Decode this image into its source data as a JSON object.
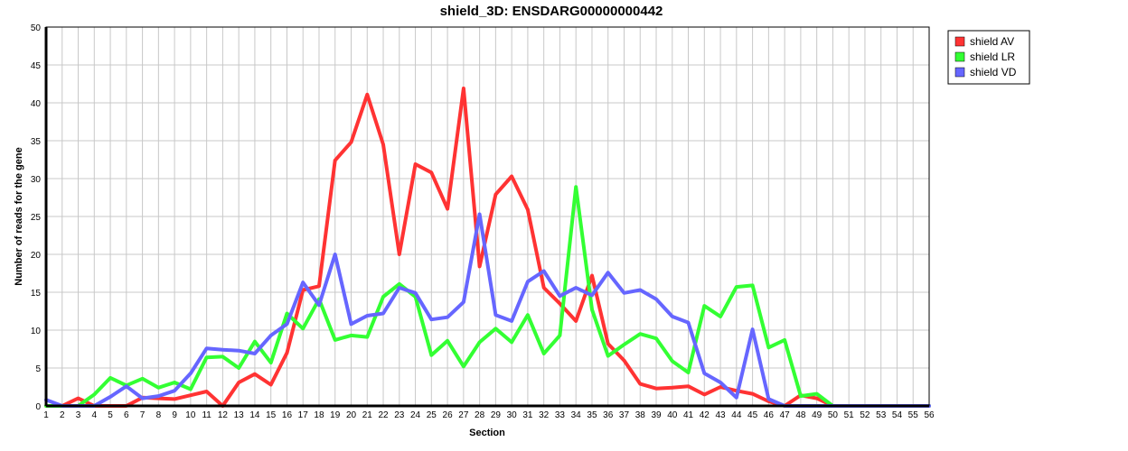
{
  "chart_data": {
    "type": "line",
    "title": "shield_3D: ENSDARG00000000442",
    "xlabel": "Section",
    "ylabel": "Number of reads for the gene",
    "xlim": [
      1,
      56
    ],
    "ylim": [
      0,
      50
    ],
    "ytick_step": 5,
    "grid": true,
    "legend_position": "top-right-outside",
    "categories": [
      "1",
      "2",
      "3",
      "4",
      "5",
      "6",
      "7",
      "8",
      "9",
      "10",
      "11",
      "12",
      "13",
      "14",
      "15",
      "16",
      "17",
      "18",
      "19",
      "20",
      "21",
      "22",
      "23",
      "24",
      "25",
      "26",
      "27",
      "28",
      "29",
      "30",
      "31",
      "32",
      "33",
      "34",
      "35",
      "36",
      "37",
      "38",
      "39",
      "40",
      "41",
      "42",
      "43",
      "44",
      "45",
      "46",
      "47",
      "48",
      "49",
      "50",
      "51",
      "52",
      "53",
      "54",
      "55",
      "56"
    ],
    "series": [
      {
        "name": "shield AV",
        "color": "#ff3333",
        "values": [
          0,
          0,
          1,
          0,
          0,
          0,
          1.1,
          1,
          0.9,
          1.4,
          1.9,
          0,
          3.1,
          4.2,
          2.8,
          7,
          15.3,
          15.8,
          32.4,
          34.8,
          41.1,
          34.5,
          20,
          31.9,
          30.8,
          26,
          41.9,
          18.4,
          27.9,
          30.3,
          25.9,
          15.6,
          13.5,
          11.2,
          17.2,
          8.2,
          6,
          2.9,
          2.3,
          2.4,
          2.6,
          1.5,
          2.5,
          2,
          1.6,
          0.6,
          0,
          1.4,
          1,
          0,
          0,
          0,
          0,
          0,
          0,
          0
        ]
      },
      {
        "name": "shield LR",
        "color": "#33ff33",
        "values": [
          0,
          0,
          0,
          1.5,
          3.7,
          2.7,
          3.6,
          2.4,
          3.1,
          2.2,
          6.4,
          6.5,
          5,
          8.5,
          5.7,
          12.2,
          10.2,
          14.1,
          8.7,
          9.3,
          9.1,
          14.4,
          16.1,
          14.4,
          6.7,
          8.6,
          5.2,
          8.4,
          10.2,
          8.4,
          12,
          6.9,
          9.3,
          28.9,
          12.7,
          6.6,
          8.1,
          9.5,
          8.9,
          5.9,
          4.4,
          13.2,
          11.8,
          15.7,
          15.9,
          7.7,
          8.7,
          1.3,
          1.6,
          0,
          0,
          0,
          0,
          0,
          0,
          0
        ]
      },
      {
        "name": "shield VD",
        "color": "#6666ff",
        "values": [
          0.8,
          0,
          0,
          0,
          1.2,
          2.6,
          1,
          1.3,
          2,
          4.3,
          7.6,
          7.4,
          7.3,
          6.9,
          9.3,
          10.8,
          16.3,
          13.3,
          20,
          10.8,
          11.9,
          12.2,
          15.6,
          14.9,
          11.4,
          11.7,
          13.7,
          25.3,
          12,
          11.2,
          16.4,
          17.8,
          14.5,
          15.6,
          14.6,
          17.6,
          14.9,
          15.3,
          14.1,
          11.8,
          11,
          4.3,
          3.1,
          1.1,
          10.1,
          0.9,
          0,
          0,
          0,
          0,
          0,
          0,
          0,
          0,
          0,
          0
        ]
      }
    ]
  }
}
